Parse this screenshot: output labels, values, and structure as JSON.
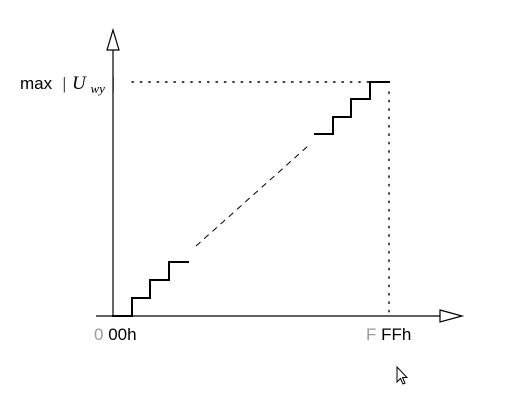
{
  "diagram": {
    "y_axis_label": {
      "prefix": "max ",
      "bar_left": "|",
      "symbol": "U",
      "subscript": "wy",
      "bar_right": "|"
    },
    "x_axis_labels": {
      "start": {
        "faded_digit": "0",
        "rest": "00h"
      },
      "end": {
        "faded_digit": "F",
        "rest": "FFh"
      }
    }
  }
}
